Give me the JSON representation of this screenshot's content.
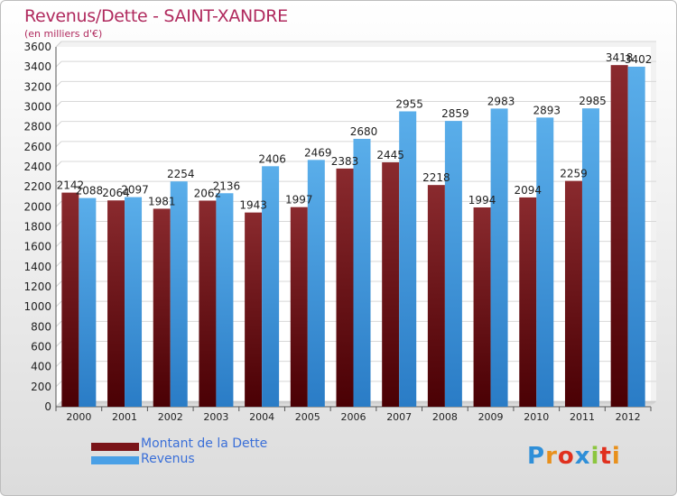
{
  "title": "Revenus/Dette - SAINT-XANDRE",
  "subtitle": "(en milliers d'€)",
  "logo": [
    "P",
    "r",
    "o",
    "x",
    "i",
    "t",
    "i"
  ],
  "colors": {
    "dette": "#7a1418",
    "revenus": "#4aa0e6",
    "title": "#b02a5e",
    "legend_text": "#3a6fd8"
  },
  "chart_data": {
    "type": "bar",
    "title": "Revenus/Dette - SAINT-XANDRE",
    "subtitle": "(en milliers d'€)",
    "categories": [
      "2000",
      "2001",
      "2002",
      "2003",
      "2004",
      "2005",
      "2006",
      "2007",
      "2008",
      "2009",
      "2010",
      "2011",
      "2012"
    ],
    "series": [
      {
        "name": "Montant de la Dette",
        "values": [
          2142,
          2064,
          1981,
          2062,
          1943,
          1997,
          2383,
          2445,
          2218,
          1994,
          2094,
          2259,
          3418
        ]
      },
      {
        "name": "Revenus",
        "values": [
          2088,
          2097,
          2254,
          2136,
          2406,
          2469,
          2680,
          2955,
          2859,
          2983,
          2893,
          2985,
          3402
        ]
      }
    ],
    "ylim": [
      0,
      3600
    ],
    "yticks": [
      0,
      200,
      400,
      600,
      800,
      1000,
      1200,
      1400,
      1600,
      1800,
      2000,
      2200,
      2400,
      2600,
      2800,
      3000,
      3200,
      3400,
      3600
    ],
    "grid": true,
    "legend": "bottom-left"
  }
}
